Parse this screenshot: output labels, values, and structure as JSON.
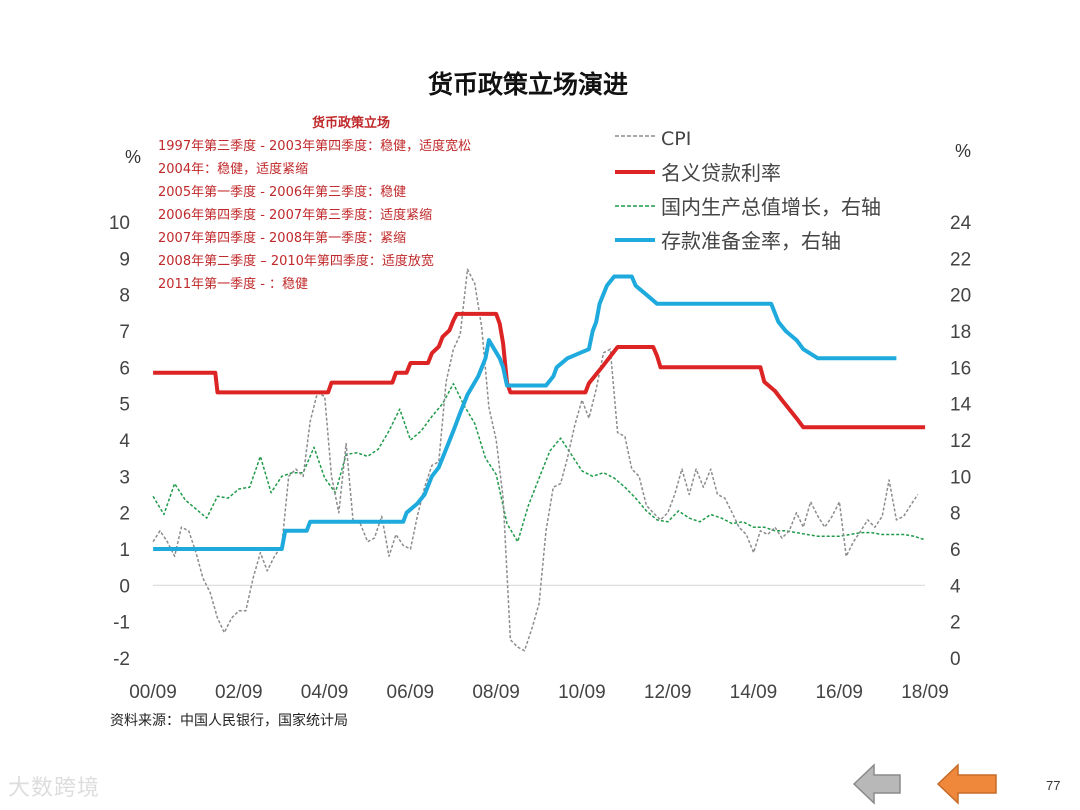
{
  "chart_data": {
    "type": "line",
    "title": "货币政策立场演进",
    "left_unit": "%",
    "right_unit": "%",
    "x_ticks": [
      "00/09",
      "02/09",
      "04/09",
      "06/09",
      "08/09",
      "10/09",
      "12/09",
      "14/09",
      "16/09",
      "18/09"
    ],
    "x_range": [
      2000.667,
      2018.667
    ],
    "y_left": {
      "range": [
        -2,
        10
      ],
      "ticks": [
        "-2",
        "-1",
        "0",
        "1",
        "2",
        "3",
        "4",
        "5",
        "6",
        "7",
        "8",
        "9",
        "10"
      ]
    },
    "y_right": {
      "range": [
        0,
        24
      ],
      "ticks": [
        "0",
        "2",
        "4",
        "6",
        "8",
        "10",
        "12",
        "14",
        "16",
        "18",
        "20",
        "22",
        "24"
      ]
    },
    "grid": false,
    "zero_line": true,
    "legend_position": "top-right",
    "annotation": {
      "title": "货币政策立场",
      "lines": [
        "1997年第三季度 - 2003年第四季度：稳健，适度宽松",
        "2004年：稳健，适度紧缩",
        "2005年第一季度 - 2006年第三季度：稳健",
        "2006年第四季度 - 2007年第三季度：适度紧缩",
        "2007年第四季度 - 2008年第一季度：紧缩",
        "2008年第二季度 – 2010年第四季度：适度放宽",
        "2011年第一季度 - ：稳健"
      ]
    },
    "source": "资料来源：中国人民银行，国家统计局",
    "series": [
      {
        "name": "CPI",
        "axis": "left",
        "color": "#8c8c8c",
        "style": "dashed",
        "points": [
          [
            2000.67,
            1.2
          ],
          [
            2000.83,
            1.5
          ],
          [
            2001.0,
            1.2
          ],
          [
            2001.17,
            0.8
          ],
          [
            2001.33,
            1.6
          ],
          [
            2001.5,
            1.5
          ],
          [
            2001.67,
            0.9
          ],
          [
            2001.83,
            0.2
          ],
          [
            2002.0,
            -0.2
          ],
          [
            2002.17,
            -0.9
          ],
          [
            2002.33,
            -1.3
          ],
          [
            2002.5,
            -0.9
          ],
          [
            2002.67,
            -0.7
          ],
          [
            2002.83,
            -0.7
          ],
          [
            2003.0,
            0.2
          ],
          [
            2003.17,
            0.9
          ],
          [
            2003.33,
            0.4
          ],
          [
            2003.5,
            0.8
          ],
          [
            2003.67,
            1.1
          ],
          [
            2003.83,
            3.0
          ],
          [
            2004.0,
            3.2
          ],
          [
            2004.17,
            3.0
          ],
          [
            2004.33,
            4.5
          ],
          [
            2004.5,
            5.3
          ],
          [
            2004.67,
            5.2
          ],
          [
            2004.83,
            3.0
          ],
          [
            2005.0,
            2.0
          ],
          [
            2005.17,
            3.9
          ],
          [
            2005.33,
            1.8
          ],
          [
            2005.5,
            1.7
          ],
          [
            2005.67,
            1.2
          ],
          [
            2005.83,
            1.3
          ],
          [
            2006.0,
            1.9
          ],
          [
            2006.17,
            0.8
          ],
          [
            2006.33,
            1.4
          ],
          [
            2006.5,
            1.1
          ],
          [
            2006.67,
            1.0
          ],
          [
            2006.83,
            1.9
          ],
          [
            2007.0,
            2.7
          ],
          [
            2007.17,
            3.3
          ],
          [
            2007.33,
            3.4
          ],
          [
            2007.5,
            5.6
          ],
          [
            2007.67,
            6.5
          ],
          [
            2007.83,
            6.9
          ],
          [
            2008.0,
            8.7
          ],
          [
            2008.17,
            8.3
          ],
          [
            2008.33,
            7.1
          ],
          [
            2008.5,
            4.9
          ],
          [
            2008.67,
            4.0
          ],
          [
            2008.83,
            2.4
          ],
          [
            2009.0,
            -1.5
          ],
          [
            2009.17,
            -1.7
          ],
          [
            2009.33,
            -1.8
          ],
          [
            2009.5,
            -1.2
          ],
          [
            2009.67,
            -0.5
          ],
          [
            2009.83,
            1.5
          ],
          [
            2010.0,
            2.7
          ],
          [
            2010.17,
            2.8
          ],
          [
            2010.33,
            3.5
          ],
          [
            2010.5,
            4.4
          ],
          [
            2010.67,
            5.1
          ],
          [
            2010.83,
            4.6
          ],
          [
            2011.0,
            5.4
          ],
          [
            2011.17,
            6.4
          ],
          [
            2011.33,
            6.5
          ],
          [
            2011.5,
            4.2
          ],
          [
            2011.67,
            4.1
          ],
          [
            2011.83,
            3.2
          ],
          [
            2012.0,
            3.0
          ],
          [
            2012.17,
            2.2
          ],
          [
            2012.33,
            2.0
          ],
          [
            2012.5,
            1.8
          ],
          [
            2012.67,
            2.0
          ],
          [
            2012.83,
            2.5
          ],
          [
            2013.0,
            3.2
          ],
          [
            2013.17,
            2.5
          ],
          [
            2013.33,
            3.2
          ],
          [
            2013.5,
            2.7
          ],
          [
            2013.67,
            3.2
          ],
          [
            2013.83,
            2.5
          ],
          [
            2014.0,
            2.4
          ],
          [
            2014.17,
            2.0
          ],
          [
            2014.33,
            1.6
          ],
          [
            2014.5,
            1.4
          ],
          [
            2014.67,
            0.9
          ],
          [
            2014.83,
            1.5
          ],
          [
            2015.0,
            1.4
          ],
          [
            2015.17,
            1.6
          ],
          [
            2015.33,
            1.3
          ],
          [
            2015.5,
            1.5
          ],
          [
            2015.67,
            2.0
          ],
          [
            2015.83,
            1.6
          ],
          [
            2016.0,
            2.3
          ],
          [
            2016.17,
            1.9
          ],
          [
            2016.33,
            1.6
          ],
          [
            2016.5,
            1.9
          ],
          [
            2016.67,
            2.3
          ],
          [
            2016.83,
            0.8
          ],
          [
            2017.0,
            1.2
          ],
          [
            2017.17,
            1.5
          ],
          [
            2017.33,
            1.8
          ],
          [
            2017.5,
            1.6
          ],
          [
            2017.67,
            1.9
          ],
          [
            2017.83,
            2.9
          ],
          [
            2018.0,
            1.8
          ],
          [
            2018.17,
            1.9
          ],
          [
            2018.33,
            2.2
          ],
          [
            2018.5,
            2.5
          ]
        ]
      },
      {
        "name": "名义贷款利率",
        "axis": "left",
        "color": "#dd2424",
        "style": "solid",
        "points": [
          [
            2000.67,
            5.85
          ],
          [
            2002.12,
            5.85
          ],
          [
            2002.17,
            5.31
          ],
          [
            2004.75,
            5.31
          ],
          [
            2004.83,
            5.58
          ],
          [
            2006.25,
            5.58
          ],
          [
            2006.33,
            5.85
          ],
          [
            2006.58,
            5.85
          ],
          [
            2006.67,
            6.12
          ],
          [
            2007.08,
            6.12
          ],
          [
            2007.17,
            6.39
          ],
          [
            2007.33,
            6.57
          ],
          [
            2007.42,
            6.84
          ],
          [
            2007.58,
            7.02
          ],
          [
            2007.67,
            7.29
          ],
          [
            2007.75,
            7.47
          ],
          [
            2008.67,
            7.47
          ],
          [
            2008.75,
            7.2
          ],
          [
            2008.83,
            6.66
          ],
          [
            2008.92,
            5.58
          ],
          [
            2009.0,
            5.31
          ],
          [
            2010.75,
            5.31
          ],
          [
            2010.83,
            5.56
          ],
          [
            2011.0,
            5.81
          ],
          [
            2011.17,
            6.06
          ],
          [
            2011.5,
            6.56
          ],
          [
            2012.33,
            6.56
          ],
          [
            2012.42,
            6.31
          ],
          [
            2012.5,
            6.0
          ],
          [
            2014.83,
            6.0
          ],
          [
            2014.92,
            5.6
          ],
          [
            2015.17,
            5.35
          ],
          [
            2015.33,
            5.1
          ],
          [
            2015.5,
            4.85
          ],
          [
            2015.67,
            4.6
          ],
          [
            2015.83,
            4.35
          ],
          [
            2018.67,
            4.35
          ]
        ]
      },
      {
        "name": "国内生产总值增长，右轴",
        "axis": "right",
        "color": "#1f9a4a",
        "style": "dashed",
        "points": [
          [
            2000.67,
            8.9
          ],
          [
            2000.92,
            7.9
          ],
          [
            2001.17,
            9.6
          ],
          [
            2001.42,
            8.7
          ],
          [
            2001.67,
            8.2
          ],
          [
            2001.92,
            7.7
          ],
          [
            2002.17,
            8.9
          ],
          [
            2002.42,
            8.8
          ],
          [
            2002.67,
            9.3
          ],
          [
            2002.92,
            9.4
          ],
          [
            2003.17,
            11.1
          ],
          [
            2003.42,
            9.1
          ],
          [
            2003.67,
            10.0
          ],
          [
            2003.92,
            10.2
          ],
          [
            2004.17,
            10.2
          ],
          [
            2004.42,
            11.6
          ],
          [
            2004.67,
            9.9
          ],
          [
            2004.92,
            9.1
          ],
          [
            2005.17,
            11.2
          ],
          [
            2005.42,
            11.3
          ],
          [
            2005.67,
            11.1
          ],
          [
            2005.92,
            11.5
          ],
          [
            2006.17,
            12.5
          ],
          [
            2006.42,
            13.7
          ],
          [
            2006.67,
            12.0
          ],
          [
            2006.92,
            12.5
          ],
          [
            2007.17,
            13.3
          ],
          [
            2007.42,
            14.0
          ],
          [
            2007.67,
            15.1
          ],
          [
            2007.92,
            13.9
          ],
          [
            2008.17,
            12.9
          ],
          [
            2008.42,
            11.0
          ],
          [
            2008.67,
            10.1
          ],
          [
            2008.92,
            7.4
          ],
          [
            2009.17,
            6.4
          ],
          [
            2009.42,
            8.4
          ],
          [
            2009.67,
            9.9
          ],
          [
            2009.92,
            11.4
          ],
          [
            2010.17,
            12.1
          ],
          [
            2010.42,
            11.2
          ],
          [
            2010.67,
            10.3
          ],
          [
            2010.92,
            10.0
          ],
          [
            2011.17,
            10.2
          ],
          [
            2011.42,
            9.9
          ],
          [
            2011.67,
            9.4
          ],
          [
            2011.92,
            8.8
          ],
          [
            2012.17,
            8.1
          ],
          [
            2012.42,
            7.6
          ],
          [
            2012.67,
            7.5
          ],
          [
            2012.92,
            8.1
          ],
          [
            2013.17,
            7.7
          ],
          [
            2013.42,
            7.5
          ],
          [
            2013.67,
            7.9
          ],
          [
            2013.92,
            7.7
          ],
          [
            2014.17,
            7.4
          ],
          [
            2014.42,
            7.5
          ],
          [
            2014.67,
            7.2
          ],
          [
            2014.92,
            7.2
          ],
          [
            2015.17,
            7.0
          ],
          [
            2015.42,
            7.0
          ],
          [
            2015.67,
            6.9
          ],
          [
            2015.92,
            6.8
          ],
          [
            2016.17,
            6.7
          ],
          [
            2016.42,
            6.7
          ],
          [
            2016.67,
            6.7
          ],
          [
            2016.92,
            6.8
          ],
          [
            2017.17,
            6.9
          ],
          [
            2017.42,
            6.9
          ],
          [
            2017.67,
            6.8
          ],
          [
            2017.92,
            6.8
          ],
          [
            2018.17,
            6.8
          ],
          [
            2018.42,
            6.7
          ],
          [
            2018.67,
            6.5
          ]
        ]
      },
      {
        "name": "存款准备金率，右轴",
        "axis": "right",
        "color": "#1eaadc",
        "style": "solid",
        "points": [
          [
            2000.67,
            6.0
          ],
          [
            2003.67,
            6.0
          ],
          [
            2003.75,
            7.0
          ],
          [
            2004.25,
            7.0
          ],
          [
            2004.33,
            7.5
          ],
          [
            2006.5,
            7.5
          ],
          [
            2006.58,
            8.0
          ],
          [
            2006.83,
            8.5
          ],
          [
            2007.0,
            9.0
          ],
          [
            2007.17,
            10.0
          ],
          [
            2007.33,
            10.5
          ],
          [
            2007.5,
            11.5
          ],
          [
            2007.67,
            12.5
          ],
          [
            2007.83,
            13.5
          ],
          [
            2008.0,
            14.5
          ],
          [
            2008.25,
            15.5
          ],
          [
            2008.42,
            16.5
          ],
          [
            2008.5,
            17.5
          ],
          [
            2008.75,
            16.5
          ],
          [
            2008.83,
            16.0
          ],
          [
            2008.92,
            15.0
          ],
          [
            2009.83,
            15.0
          ],
          [
            2010.0,
            15.5
          ],
          [
            2010.08,
            16.0
          ],
          [
            2010.33,
            16.5
          ],
          [
            2010.83,
            17.0
          ],
          [
            2010.92,
            18.0
          ],
          [
            2011.0,
            18.5
          ],
          [
            2011.08,
            19.5
          ],
          [
            2011.25,
            20.5
          ],
          [
            2011.42,
            21.0
          ],
          [
            2011.83,
            21.0
          ],
          [
            2011.92,
            20.5
          ],
          [
            2012.17,
            20.0
          ],
          [
            2012.42,
            19.5
          ],
          [
            2015.08,
            19.5
          ],
          [
            2015.25,
            18.5
          ],
          [
            2015.42,
            18.0
          ],
          [
            2015.67,
            17.5
          ],
          [
            2015.83,
            17.0
          ],
          [
            2016.17,
            16.5
          ],
          [
            2018.0,
            16.5
          ]
        ]
      }
    ]
  },
  "footer": {
    "watermark": "大数跨境",
    "page_number": "77",
    "prev_icon": "arrow-left-gray-icon",
    "next_icon": "arrow-left-orange-icon",
    "prev_color": "#b8b8b8",
    "next_color": "#f0883c"
  }
}
